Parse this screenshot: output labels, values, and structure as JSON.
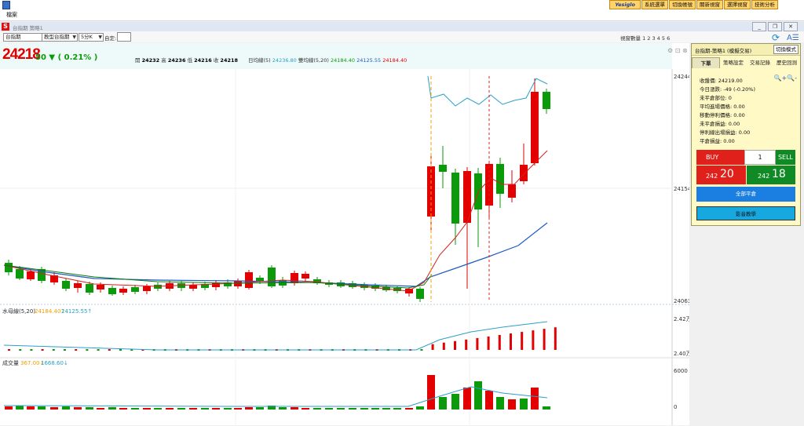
{
  "topbar": {
    "buttons": [
      "Yesiglo",
      "系統選單",
      "切換帳號",
      "關新視窗",
      "選擇視窗",
      "技術分析"
    ]
  },
  "menu": {
    "file": "檔案"
  },
  "window": {
    "icon_letter": "S",
    "title": "台指期 策略1"
  },
  "toolbar": {
    "select1": "台指期",
    "select2": "教型台指期",
    "select3": "5分K",
    "custom_label": "自定:",
    "view_count": "視窗數量 1 2 3 4 5 6"
  },
  "quote": {
    "price": "24218",
    "change": "50 ▼ ( 0.21% )",
    "open_label": "開",
    "open": "24232",
    "high_label": "高",
    "high": "24236",
    "low_label": "低",
    "low": "24216",
    "close_label": "收",
    "close": "24218",
    "ma_label": "日均線(5)",
    "ma_value": "24236.80",
    "boll_label": "雙均線(5,20)",
    "boll1": "24184.40",
    "boll2": "24125.55",
    "boll3": "24184.40"
  },
  "axes": {
    "main": [
      "24244",
      "24154",
      "24063"
    ],
    "sub1": [
      "2.42万",
      "2.40万"
    ],
    "sub2": [
      "6000",
      "0"
    ]
  },
  "sub1": {
    "label": "水母線(5,20)",
    "v1": "24184.40↑",
    "v2": "24125.55↑"
  },
  "sub2": {
    "label": "成交量",
    "v1": "367.00↓",
    "v2": "1668.60↓"
  },
  "panel": {
    "title": "台指期-策略1 (模擬交易)",
    "mode": "切換模式",
    "tabs": [
      "下單",
      "策略設定",
      "交易記錄",
      "歷史回測"
    ],
    "info": [
      "收盤價: 24219.00",
      "今日漲跌: -49 (-0.20%)",
      "未平倉部位: 0",
      "平均進場價格: 0.00",
      "移動停利價格: 0.00",
      "未平倉損益: 0.00",
      "停利線出場損益: 0.00",
      "平倉損益: 0.00"
    ],
    "buy": "BUY",
    "qty": "1",
    "sell": "SELL",
    "bid_prefix": "242",
    "bid": "20",
    "ask_prefix": "242",
    "ask": "18",
    "flat_all": "全部平倉",
    "video": "影音教學"
  },
  "colors": {
    "up": "#e20000",
    "down": "#0a9a0a",
    "ma": "#1e5bc2",
    "bb": "#2aa0c8"
  }
}
